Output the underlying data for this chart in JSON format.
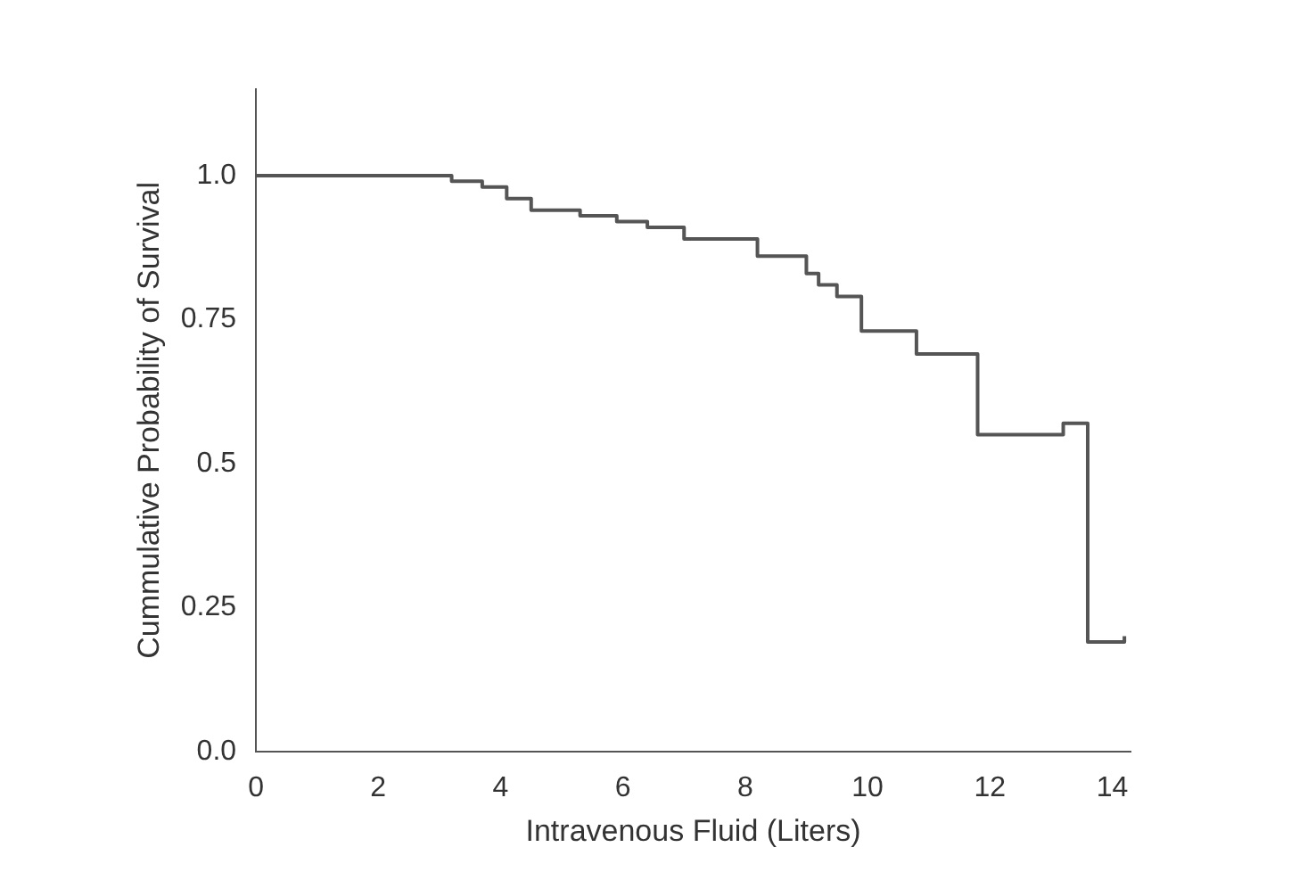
{
  "chart_data": {
    "type": "step",
    "xlabel": "Intravenous Fluid (Liters)",
    "ylabel": "Cummulative Probability of Survival",
    "x": [
      0,
      3.2,
      3.7,
      4.1,
      4.5,
      5.3,
      5.9,
      6.4,
      7.0,
      8.2,
      9.0,
      9.2,
      9.5,
      9.9,
      10.8,
      11.8,
      13.2,
      13.6,
      14.2
    ],
    "values": [
      1.0,
      0.99,
      0.98,
      0.96,
      0.94,
      0.93,
      0.92,
      0.91,
      0.89,
      0.86,
      0.83,
      0.81,
      0.79,
      0.73,
      0.69,
      0.55,
      0.57,
      0.19,
      0.2
    ],
    "color": "#555555",
    "xlim": [
      0,
      14.3
    ],
    "xticks": [
      0,
      2,
      4,
      6,
      8,
      10,
      12,
      14
    ],
    "ylim": [
      0,
      1.15
    ],
    "yticks": [
      {
        "value": 0,
        "label": "0.0"
      },
      0.25,
      0.5,
      0.75,
      {
        "value": 1,
        "label": "1.0"
      }
    ],
    "grid": false,
    "legend": false
  }
}
